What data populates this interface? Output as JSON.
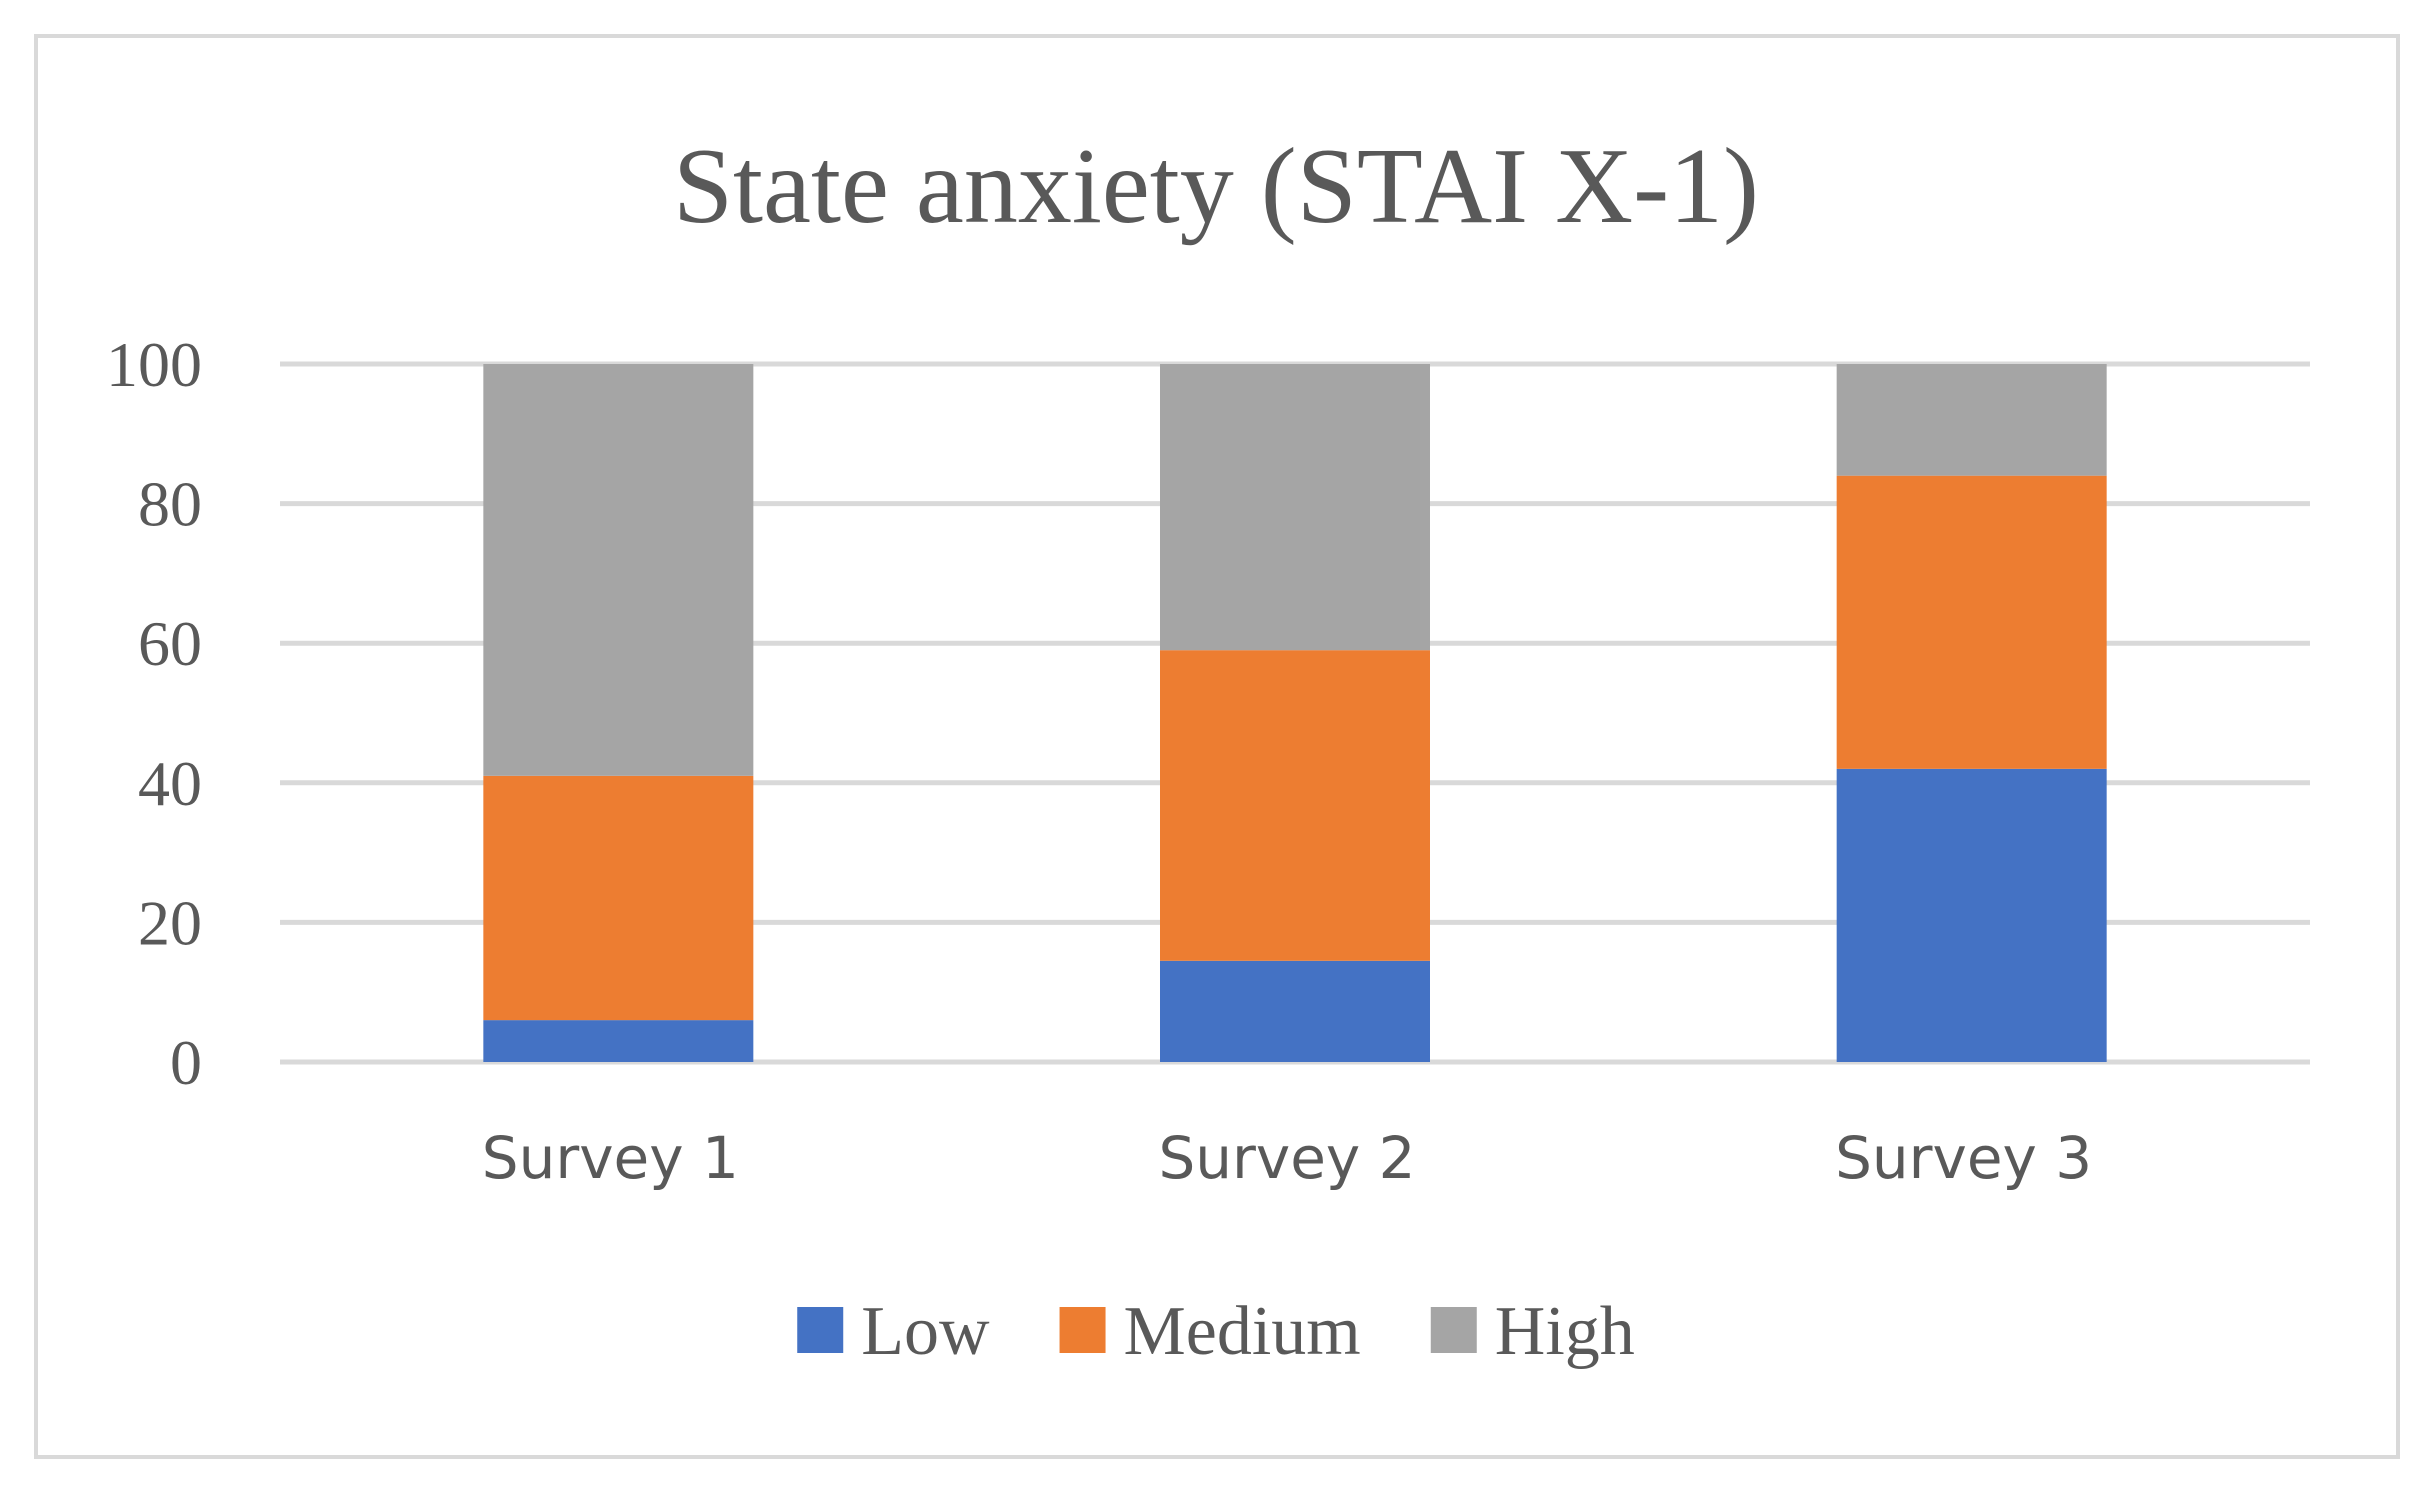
{
  "chart_data": {
    "type": "bar",
    "stacked": true,
    "title": "State anxiety (STAI X-1)",
    "xlabel": "",
    "ylabel": "",
    "categories": [
      "Survey 1",
      "Survey 2",
      "Survey 3"
    ],
    "series": [
      {
        "name": "Low",
        "color": "#4472c4",
        "values": [
          6,
          14.5,
          42
        ]
      },
      {
        "name": "Medium",
        "color": "#ed7d31",
        "values": [
          35,
          44.5,
          42
        ]
      },
      {
        "name": "High",
        "color": "#a5a5a5",
        "values": [
          59,
          41,
          16
        ]
      }
    ],
    "ylim": [
      0,
      100
    ],
    "yticks": [
      "0",
      "20",
      "40",
      "60",
      "80",
      "100"
    ],
    "grid": true,
    "legend_position": "bottom"
  }
}
